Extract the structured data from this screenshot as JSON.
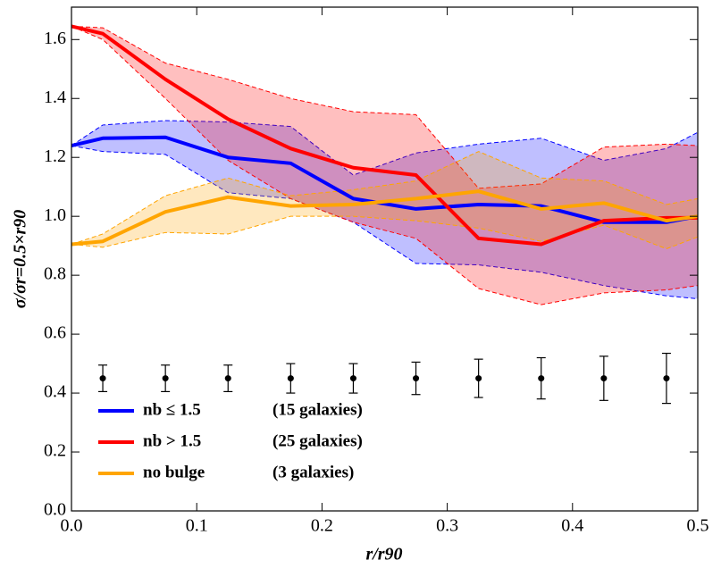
{
  "chart_data": {
    "type": "line",
    "xlabel": "r/r90",
    "ylabel": "σ/σr=0.5×r90",
    "xlim": [
      0,
      0.5
    ],
    "ylim": [
      0,
      1.71
    ],
    "xticks": [
      {
        "value": 0,
        "label": "0.0"
      },
      0.1,
      0.2,
      0.3,
      0.4,
      0.5
    ],
    "yticks": [
      {
        "value": 0,
        "label": "0.0"
      },
      0.2,
      0.4,
      0.6,
      0.8,
      {
        "value": 1,
        "label": "1.0"
      },
      1.2,
      1.4,
      1.6
    ],
    "legend": "lower left",
    "x": [
      0,
      0.025,
      0.075,
      0.125,
      0.175,
      0.225,
      0.275,
      0.325,
      0.375,
      0.425,
      0.475,
      0.5
    ],
    "series": [
      {
        "name": "nb ≤ 1.5",
        "count": "(15 galaxies)",
        "color": "#0000ff",
        "values": [
          1.24,
          1.265,
          1.268,
          1.2,
          1.18,
          1.06,
          1.025,
          1.04,
          1.035,
          0.98,
          0.98,
          1.0
        ],
        "upper": [
          1.24,
          1.31,
          1.325,
          1.32,
          1.305,
          1.14,
          1.215,
          1.245,
          1.265,
          1.19,
          1.23,
          1.285
        ],
        "lower": [
          1.24,
          1.22,
          1.21,
          1.08,
          1.06,
          0.98,
          0.84,
          0.835,
          0.81,
          0.765,
          0.73,
          0.72
        ]
      },
      {
        "name": "nb > 1.5",
        "count": "(25 galaxies)",
        "color": "#ff0000",
        "values": [
          1.645,
          1.62,
          1.465,
          1.33,
          1.23,
          1.165,
          1.14,
          0.925,
          0.905,
          0.985,
          0.995,
          0.995
        ],
        "upper": [
          1.645,
          1.64,
          1.52,
          1.465,
          1.4,
          1.355,
          1.345,
          1.095,
          1.11,
          1.235,
          1.245,
          1.24
        ],
        "lower": [
          1.645,
          1.6,
          1.4,
          1.19,
          1.06,
          0.98,
          0.925,
          0.755,
          0.7,
          0.74,
          0.75,
          0.765
        ]
      },
      {
        "name": "no bulge",
        "count": "(3 galaxies)",
        "color": "#ffa500",
        "values": [
          0.905,
          0.915,
          1.015,
          1.065,
          1.035,
          1.04,
          1.06,
          1.085,
          1.025,
          1.045,
          0.985,
          1.0
        ],
        "upper": [
          0.905,
          0.94,
          1.07,
          1.13,
          1.07,
          1.09,
          1.12,
          1.22,
          1.13,
          1.12,
          1.04,
          1.06
        ],
        "lower": [
          0.905,
          0.895,
          0.945,
          0.94,
          1.0,
          1.0,
          0.985,
          0.96,
          0.915,
          0.97,
          0.89,
          0.93
        ]
      }
    ],
    "errorbars": {
      "color": "#000000",
      "x": [
        0.025,
        0.075,
        0.125,
        0.175,
        0.225,
        0.275,
        0.325,
        0.375,
        0.425,
        0.475
      ],
      "y": [
        0.45,
        0.45,
        0.45,
        0.45,
        0.45,
        0.45,
        0.45,
        0.45,
        0.45,
        0.45
      ],
      "err": [
        0.045,
        0.045,
        0.045,
        0.05,
        0.05,
        0.055,
        0.065,
        0.07,
        0.075,
        0.085
      ]
    }
  }
}
